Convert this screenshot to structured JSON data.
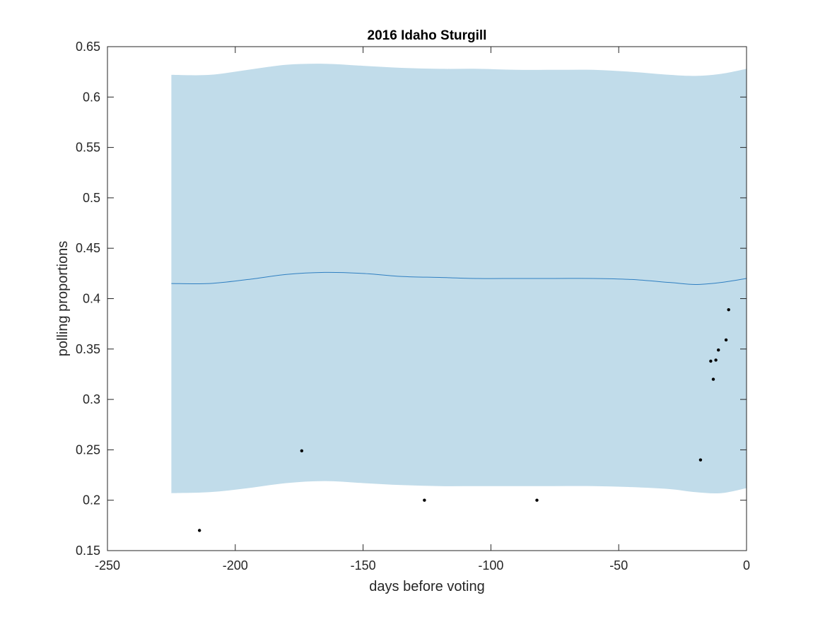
{
  "chart_data": {
    "type": "line",
    "title": "2016 Idaho Sturgill",
    "xlabel": "days before voting",
    "ylabel": "polling proportions",
    "xlim": [
      -250,
      0
    ],
    "ylim": [
      0.15,
      0.65
    ],
    "x_ticks": [
      -250,
      -200,
      -150,
      -100,
      -50,
      0
    ],
    "x_tick_labels": [
      "-250",
      "-200",
      "-150",
      "-100",
      "-50",
      "0"
    ],
    "y_ticks": [
      0.15,
      0.2,
      0.25,
      0.3,
      0.35,
      0.4,
      0.45,
      0.5,
      0.55,
      0.6,
      0.65
    ],
    "y_tick_labels": [
      "0.15",
      "0.2",
      "0.25",
      "0.3",
      "0.35",
      "0.4",
      "0.45",
      "0.5",
      "0.55",
      "0.6",
      "0.65"
    ],
    "grid": false,
    "colors": {
      "band": "#c1dcea",
      "mean": "#2f7fc1",
      "points": "#000000",
      "axis": "#262626"
    },
    "band": {
      "x": [
        -225,
        -210,
        -195,
        -180,
        -165,
        -150,
        -135,
        -120,
        -105,
        -90,
        -75,
        -60,
        -45,
        -30,
        -20,
        -10,
        0
      ],
      "upper": [
        0.622,
        0.622,
        0.627,
        0.632,
        0.633,
        0.631,
        0.629,
        0.628,
        0.628,
        0.627,
        0.627,
        0.627,
        0.625,
        0.622,
        0.621,
        0.623,
        0.628
      ],
      "lower": [
        0.207,
        0.208,
        0.212,
        0.217,
        0.219,
        0.217,
        0.215,
        0.214,
        0.214,
        0.214,
        0.214,
        0.214,
        0.213,
        0.211,
        0.208,
        0.207,
        0.212
      ]
    },
    "series": [
      {
        "type": "line",
        "x": [
          -225,
          -210,
          -195,
          -180,
          -165,
          -150,
          -135,
          -120,
          -105,
          -90,
          -75,
          -60,
          -45,
          -30,
          -20,
          -10,
          0
        ],
        "values": [
          0.415,
          0.415,
          0.419,
          0.424,
          0.426,
          0.425,
          0.422,
          0.421,
          0.42,
          0.42,
          0.42,
          0.42,
          0.419,
          0.416,
          0.414,
          0.416,
          0.42
        ]
      },
      {
        "type": "scatter",
        "x": [
          -214,
          -174,
          -126,
          -82,
          -18,
          -14,
          -13,
          -12,
          -11,
          -8,
          -7
        ],
        "values": [
          0.17,
          0.249,
          0.2,
          0.2,
          0.24,
          0.338,
          0.32,
          0.339,
          0.349,
          0.359,
          0.389
        ]
      }
    ]
  }
}
